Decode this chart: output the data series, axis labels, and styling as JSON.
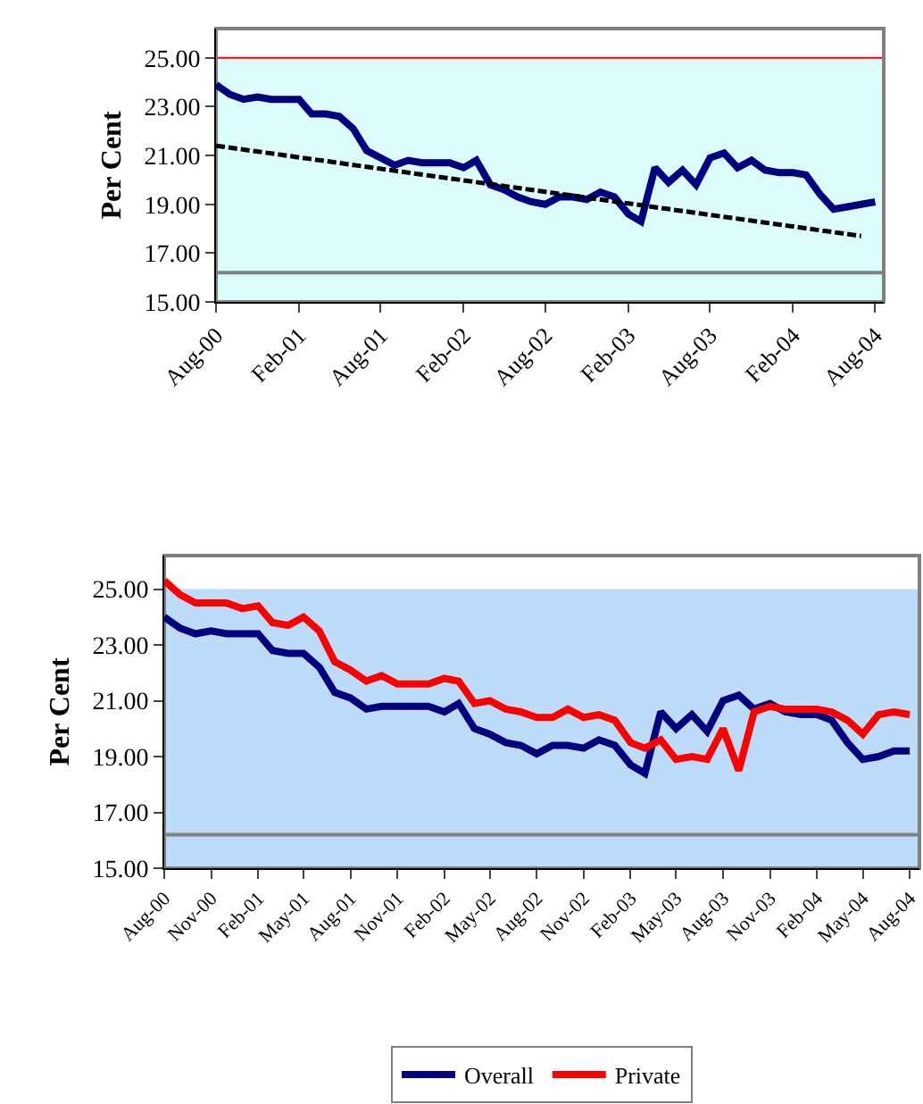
{
  "chart_data": [
    {
      "type": "line",
      "ylabel": "Per Cent",
      "x": [
        "2000-08",
        "2000-09",
        "2000-10",
        "2000-11",
        "2000-12",
        "2001-01",
        "2001-02",
        "2001-03",
        "2001-04",
        "2001-05",
        "2001-06",
        "2001-07",
        "2001-08",
        "2001-09",
        "2001-10",
        "2001-11",
        "2001-12",
        "2002-01",
        "2002-02",
        "2002-03",
        "2002-04",
        "2002-05",
        "2002-06",
        "2002-07",
        "2002-08",
        "2002-09",
        "2002-10",
        "2002-11",
        "2002-12",
        "2003-01",
        "2003-02",
        "2003-03",
        "2003-04",
        "2003-05",
        "2003-06",
        "2003-07",
        "2003-08",
        "2003-09",
        "2003-10",
        "2003-11",
        "2003-12",
        "2004-01",
        "2004-02",
        "2004-03",
        "2004-04",
        "2004-05",
        "2004-06",
        "2004-07",
        "2004-08"
      ],
      "series": [
        {
          "color": "#000080",
          "values": [
            23.9,
            23.5,
            23.3,
            23.4,
            23.3,
            23.3,
            23.3,
            22.7,
            22.7,
            22.6,
            22.1,
            21.2,
            20.9,
            20.6,
            20.8,
            20.7,
            20.7,
            20.7,
            20.5,
            20.8,
            19.8,
            19.6,
            19.3,
            19.1,
            19.0,
            19.3,
            19.3,
            19.2,
            19.5,
            19.3,
            18.6,
            18.3,
            20.5,
            19.9,
            20.4,
            19.8,
            20.9,
            21.1,
            20.5,
            20.8,
            20.4,
            20.3,
            20.3,
            20.2,
            19.4,
            18.8,
            18.9,
            19.0,
            19.1
          ]
        },
        {
          "type": "line",
          "color": "#000000",
          "line_style": "dashed",
          "x": [
            "2000-08",
            "2004-07"
          ],
          "values": [
            21.4,
            17.7
          ]
        }
      ],
      "xlim": [
        "2000-08",
        "2004-08-20"
      ],
      "xticks": [
        {
          "value": "2000-08",
          "label": "Aug-00"
        },
        {
          "value": "2001-02",
          "label": "Feb-01"
        },
        {
          "value": "2001-08",
          "label": "Aug-01"
        },
        {
          "value": "2002-02",
          "label": "Feb-02"
        },
        {
          "value": "2002-08",
          "label": "Aug-02"
        },
        {
          "value": "2003-02",
          "label": "Feb-03"
        },
        {
          "value": "2003-08",
          "label": "Aug-03"
        },
        {
          "value": "2004-02",
          "label": "Feb-04"
        },
        {
          "value": "2004-08",
          "label": "Aug-04"
        }
      ],
      "ylim": [
        15,
        26.2
      ],
      "yticks": [
        {
          "value": 15,
          "label": "15.00"
        },
        {
          "value": 17,
          "label": "17.00"
        },
        {
          "value": 19,
          "label": "19.00"
        },
        {
          "value": 21,
          "label": "21.00"
        },
        {
          "value": 23,
          "label": "23.00"
        },
        {
          "value": 25,
          "label": "25.00"
        }
      ],
      "bands": [
        {
          "axis": "y",
          "from": 15,
          "to": 25,
          "color": "#dcfcfc"
        }
      ],
      "ref_lines": [
        {
          "axis": "y",
          "value": 25,
          "color": "#ff0000"
        },
        {
          "axis": "y",
          "value": 16.2,
          "color": "#808080"
        }
      ],
      "grid": false,
      "legend": false
    },
    {
      "type": "line",
      "ylabel": "Per Cent",
      "x": [
        "2000-08",
        "2000-09",
        "2000-10",
        "2000-11",
        "2000-12",
        "2001-01",
        "2001-02",
        "2001-03",
        "2001-04",
        "2001-05",
        "2001-06",
        "2001-07",
        "2001-08",
        "2001-09",
        "2001-10",
        "2001-11",
        "2001-12",
        "2002-01",
        "2002-02",
        "2002-03",
        "2002-04",
        "2002-05",
        "2002-06",
        "2002-07",
        "2002-08",
        "2002-09",
        "2002-10",
        "2002-11",
        "2002-12",
        "2003-01",
        "2003-02",
        "2003-03",
        "2003-04",
        "2003-05",
        "2003-06",
        "2003-07",
        "2003-08",
        "2003-09",
        "2003-10",
        "2003-11",
        "2003-12",
        "2004-01",
        "2004-02",
        "2004-03",
        "2004-04",
        "2004-05",
        "2004-06",
        "2004-07",
        "2004-08"
      ],
      "series": [
        {
          "name": "Overall",
          "color": "#000080",
          "values": [
            24.0,
            23.6,
            23.4,
            23.5,
            23.4,
            23.4,
            23.4,
            22.8,
            22.7,
            22.7,
            22.2,
            21.3,
            21.1,
            20.7,
            20.8,
            20.8,
            20.8,
            20.8,
            20.6,
            20.9,
            20.0,
            19.8,
            19.5,
            19.4,
            19.1,
            19.4,
            19.4,
            19.3,
            19.6,
            19.4,
            18.7,
            18.4,
            20.6,
            20.0,
            20.5,
            19.9,
            21.0,
            21.2,
            20.7,
            20.9,
            20.6,
            20.5,
            20.5,
            20.3,
            19.5,
            18.9,
            19.0,
            19.2,
            19.2
          ]
        },
        {
          "name": "Private",
          "color": "#ff0000",
          "values": [
            25.3,
            24.8,
            24.5,
            24.5,
            24.5,
            24.3,
            24.4,
            23.8,
            23.7,
            24.0,
            23.5,
            22.4,
            22.1,
            21.7,
            21.9,
            21.6,
            21.6,
            21.6,
            21.8,
            21.7,
            20.9,
            21.0,
            20.7,
            20.6,
            20.4,
            20.4,
            20.7,
            20.4,
            20.5,
            20.3,
            19.5,
            19.3,
            19.6,
            18.9,
            19.0,
            18.9,
            20.0,
            18.5,
            20.6,
            20.8,
            20.7,
            20.7,
            20.7,
            20.6,
            20.3,
            19.8,
            20.5,
            20.6,
            20.5
          ]
        }
      ],
      "xlim": [
        "2000-08",
        "2004-08-20"
      ],
      "xticks": [
        {
          "value": "2000-08",
          "label": "Aug-00"
        },
        {
          "value": "2000-11",
          "label": "Nov-00"
        },
        {
          "value": "2001-02",
          "label": "Feb-01"
        },
        {
          "value": "2001-05",
          "label": "May-01"
        },
        {
          "value": "2001-08",
          "label": "Aug-01"
        },
        {
          "value": "2001-11",
          "label": "Nov-01"
        },
        {
          "value": "2002-02",
          "label": "Feb-02"
        },
        {
          "value": "2002-05",
          "label": "May-02"
        },
        {
          "value": "2002-08",
          "label": "Aug-02"
        },
        {
          "value": "2002-11",
          "label": "Nov-02"
        },
        {
          "value": "2003-02",
          "label": "Feb-03"
        },
        {
          "value": "2003-05",
          "label": "May-03"
        },
        {
          "value": "2003-08",
          "label": "Aug-03"
        },
        {
          "value": "2003-11",
          "label": "Nov-03"
        },
        {
          "value": "2004-02",
          "label": "Feb-04"
        },
        {
          "value": "2004-05",
          "label": "May-04"
        },
        {
          "value": "2004-08",
          "label": "Aug-04"
        }
      ],
      "ylim": [
        15,
        26.2
      ],
      "yticks": [
        {
          "value": 15,
          "label": "15.00"
        },
        {
          "value": 17,
          "label": "17.00"
        },
        {
          "value": 19,
          "label": "19.00"
        },
        {
          "value": 21,
          "label": "21.00"
        },
        {
          "value": 23,
          "label": "23.00"
        },
        {
          "value": 25,
          "label": "25.00"
        }
      ],
      "bands": [
        {
          "axis": "y",
          "from": 15,
          "to": 25,
          "color": "#bcdcfa"
        }
      ],
      "ref_lines": [
        {
          "axis": "y",
          "value": 16.2,
          "color": "#808080"
        }
      ],
      "grid": false,
      "legend": "bottom"
    }
  ]
}
